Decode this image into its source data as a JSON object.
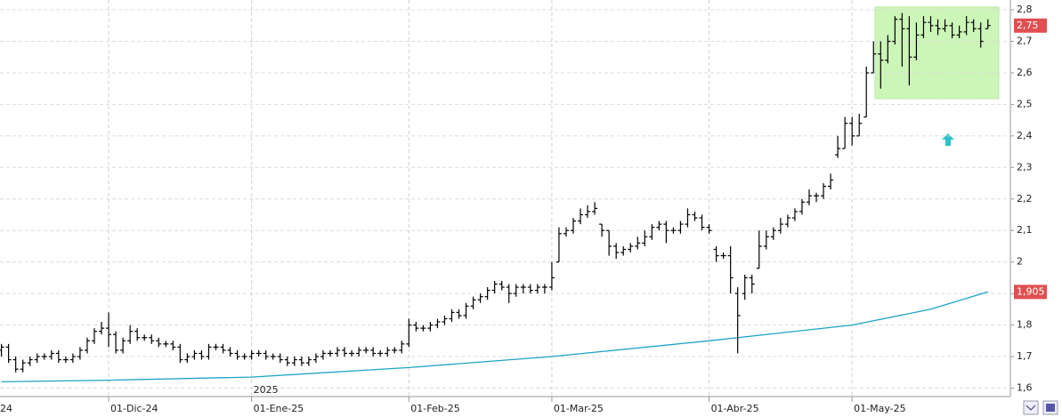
{
  "chart_data": {
    "type": "ohlc",
    "categories": [
      null,
      null,
      null,
      null,
      null,
      null,
      null,
      null,
      null,
      null,
      null,
      null,
      null,
      null,
      null,
      "01-Dic-24",
      null,
      null,
      null,
      null,
      null,
      null,
      null,
      null,
      null,
      null,
      null,
      null,
      null,
      null,
      null,
      null,
      null,
      null,
      null,
      "01-Ene-25",
      null,
      null,
      null,
      null,
      null,
      null,
      null,
      null,
      null,
      null,
      null,
      null,
      null,
      null,
      null,
      null,
      null,
      null,
      null,
      null,
      null,
      "01-Feb-25",
      null,
      null,
      null,
      null,
      null,
      null,
      null,
      null,
      null,
      null,
      null,
      null,
      null,
      null,
      null,
      null,
      null,
      null,
      null,
      "01-Mar-25",
      null,
      null,
      null,
      null,
      null,
      null,
      null,
      null,
      null,
      null,
      null,
      null,
      null,
      null,
      null,
      null,
      null,
      null,
      null,
      null,
      null,
      "01-Abr-25",
      null,
      null,
      null,
      null,
      null,
      null,
      null,
      null,
      null,
      null,
      null,
      null,
      null,
      null,
      null,
      null,
      null,
      null,
      null,
      "01-May-25",
      null,
      null,
      null,
      null,
      null,
      null,
      null,
      null,
      null,
      null,
      null,
      null,
      null,
      null,
      null,
      null,
      null,
      null,
      null
    ],
    "lead_label": "24",
    "year_label": "2025",
    "open": [
      1.72,
      1.73,
      1.69,
      1.66,
      1.68,
      1.69,
      1.7,
      1.7,
      1.71,
      1.69,
      1.69,
      1.7,
      1.72,
      1.75,
      1.78,
      1.79,
      1.77,
      1.72,
      1.75,
      1.78,
      1.76,
      1.76,
      1.75,
      1.74,
      1.74,
      1.73,
      1.69,
      1.7,
      1.71,
      1.7,
      1.73,
      1.73,
      1.72,
      1.71,
      1.7,
      1.7,
      1.71,
      1.71,
      1.7,
      1.7,
      1.69,
      1.68,
      1.69,
      1.68,
      1.69,
      1.7,
      1.71,
      1.71,
      1.72,
      1.71,
      1.71,
      1.72,
      1.72,
      1.71,
      1.71,
      1.72,
      1.72,
      1.74,
      1.8,
      1.79,
      1.79,
      1.8,
      1.81,
      1.82,
      1.84,
      1.83,
      1.86,
      1.88,
      1.89,
      1.91,
      1.93,
      1.92,
      1.9,
      1.92,
      1.92,
      1.91,
      1.92,
      1.92,
      2.0,
      2.09,
      2.1,
      2.13,
      2.15,
      2.16,
      2.12,
      2.1,
      2.05,
      2.03,
      2.04,
      2.05,
      2.06,
      2.08,
      2.11,
      2.12,
      2.1,
      2.1,
      2.12,
      2.15,
      2.14,
      2.11,
      2.04,
      2.02,
      2.02,
      1.9,
      1.9,
      1.95,
      1.98,
      2.05,
      2.08,
      2.1,
      2.12,
      2.14,
      2.16,
      2.19,
      2.21,
      2.21,
      2.24,
      2.34,
      2.36,
      2.44,
      2.4,
      2.46,
      2.6,
      2.66,
      2.64,
      2.7,
      2.77,
      2.74,
      2.65,
      2.72,
      2.76,
      2.75,
      2.74,
      2.75,
      2.72,
      2.73,
      2.76,
      2.74,
      2.74
    ],
    "high": [
      1.74,
      1.74,
      1.7,
      1.69,
      1.7,
      1.71,
      1.71,
      1.72,
      1.72,
      1.7,
      1.71,
      1.73,
      1.76,
      1.79,
      1.81,
      1.84,
      1.78,
      1.76,
      1.8,
      1.79,
      1.77,
      1.77,
      1.76,
      1.75,
      1.75,
      1.74,
      1.71,
      1.72,
      1.72,
      1.74,
      1.74,
      1.74,
      1.73,
      1.72,
      1.71,
      1.72,
      1.72,
      1.72,
      1.71,
      1.71,
      1.7,
      1.7,
      1.7,
      1.7,
      1.71,
      1.72,
      1.72,
      1.73,
      1.73,
      1.72,
      1.73,
      1.73,
      1.73,
      1.72,
      1.73,
      1.73,
      1.75,
      1.82,
      1.81,
      1.8,
      1.81,
      1.82,
      1.83,
      1.85,
      1.85,
      1.87,
      1.89,
      1.9,
      1.92,
      1.94,
      1.94,
      1.93,
      1.93,
      1.93,
      1.93,
      1.93,
      1.93,
      2.0,
      2.11,
      2.11,
      2.14,
      2.17,
      2.18,
      2.19,
      2.12,
      2.1,
      2.06,
      2.05,
      2.06,
      2.08,
      2.1,
      2.12,
      2.13,
      2.13,
      2.11,
      2.13,
      2.17,
      2.16,
      2.15,
      2.12,
      2.05,
      2.03,
      2.05,
      1.92,
      1.96,
      1.96,
      2.1,
      2.1,
      2.11,
      2.14,
      2.15,
      2.17,
      2.2,
      2.23,
      2.22,
      2.25,
      2.28,
      2.4,
      2.46,
      2.46,
      2.47,
      2.62,
      2.7,
      2.7,
      2.72,
      2.78,
      2.79,
      2.78,
      2.76,
      2.78,
      2.78,
      2.77,
      2.77,
      2.76,
      2.75,
      2.78,
      2.77,
      2.76,
      2.77
    ],
    "low": [
      1.7,
      1.68,
      1.65,
      1.65,
      1.67,
      1.68,
      1.69,
      1.69,
      1.68,
      1.68,
      1.68,
      1.69,
      1.71,
      1.74,
      1.77,
      1.73,
      1.71,
      1.71,
      1.74,
      1.75,
      1.75,
      1.74,
      1.73,
      1.73,
      1.72,
      1.68,
      1.68,
      1.69,
      1.69,
      1.69,
      1.72,
      1.71,
      1.7,
      1.69,
      1.69,
      1.69,
      1.7,
      1.69,
      1.69,
      1.68,
      1.67,
      1.67,
      1.67,
      1.67,
      1.68,
      1.69,
      1.7,
      1.7,
      1.7,
      1.7,
      1.7,
      1.71,
      1.7,
      1.7,
      1.7,
      1.71,
      1.71,
      1.73,
      1.78,
      1.78,
      1.78,
      1.79,
      1.8,
      1.81,
      1.82,
      1.82,
      1.85,
      1.87,
      1.88,
      1.9,
      1.91,
      1.87,
      1.89,
      1.9,
      1.9,
      1.9,
      1.9,
      1.91,
      2.0,
      2.08,
      2.09,
      2.12,
      2.14,
      2.15,
      2.08,
      2.02,
      2.01,
      2.02,
      2.03,
      2.04,
      2.05,
      2.07,
      2.1,
      2.06,
      2.09,
      2.09,
      2.11,
      2.13,
      2.1,
      2.09,
      2.0,
      2.01,
      1.9,
      1.71,
      1.88,
      1.9,
      1.98,
      2.04,
      2.07,
      2.09,
      2.11,
      2.13,
      2.15,
      2.18,
      2.19,
      2.2,
      2.23,
      2.33,
      2.36,
      2.37,
      2.4,
      2.46,
      2.6,
      2.55,
      2.63,
      2.69,
      2.62,
      2.56,
      2.64,
      2.71,
      2.73,
      2.72,
      2.73,
      2.71,
      2.71,
      2.72,
      2.73,
      2.68,
      2.74
    ],
    "close": [
      1.73,
      1.69,
      1.66,
      1.68,
      1.69,
      1.7,
      1.7,
      1.71,
      1.69,
      1.69,
      1.7,
      1.72,
      1.75,
      1.78,
      1.79,
      1.77,
      1.72,
      1.75,
      1.78,
      1.76,
      1.76,
      1.75,
      1.74,
      1.74,
      1.73,
      1.69,
      1.7,
      1.71,
      1.7,
      1.73,
      1.73,
      1.72,
      1.71,
      1.7,
      1.7,
      1.71,
      1.71,
      1.7,
      1.7,
      1.69,
      1.68,
      1.69,
      1.68,
      1.69,
      1.7,
      1.71,
      1.71,
      1.72,
      1.71,
      1.71,
      1.72,
      1.72,
      1.71,
      1.71,
      1.72,
      1.72,
      1.74,
      1.8,
      1.79,
      1.79,
      1.8,
      1.81,
      1.82,
      1.84,
      1.83,
      1.86,
      1.88,
      1.89,
      1.91,
      1.93,
      1.92,
      1.9,
      1.92,
      1.92,
      1.91,
      1.92,
      1.92,
      1.95,
      2.09,
      2.1,
      2.13,
      2.15,
      2.16,
      2.17,
      2.1,
      2.05,
      2.03,
      2.04,
      2.05,
      2.06,
      2.08,
      2.11,
      2.12,
      2.1,
      2.1,
      2.12,
      2.15,
      2.14,
      2.11,
      2.1,
      2.02,
      2.02,
      1.95,
      1.83,
      1.95,
      1.93,
      2.05,
      2.08,
      2.1,
      2.12,
      2.14,
      2.16,
      2.19,
      2.21,
      2.21,
      2.24,
      2.26,
      2.36,
      2.44,
      2.4,
      2.44,
      2.6,
      2.66,
      2.64,
      2.7,
      2.77,
      2.74,
      2.65,
      2.72,
      2.76,
      2.75,
      2.74,
      2.75,
      2.72,
      2.73,
      2.76,
      2.74,
      2.7,
      2.75
    ],
    "bar_color": "#000000",
    "ma": {
      "x": [
        0,
        15,
        35,
        57,
        77,
        99,
        119,
        130,
        138
      ],
      "values": [
        1.62,
        1.625,
        1.635,
        1.665,
        1.7,
        1.75,
        1.8,
        1.85,
        1.905
      ],
      "color": "#1ca3c8"
    },
    "last_label": {
      "value": 2.75,
      "label": "2,75"
    },
    "ma_label": {
      "value": 1.905,
      "label": "1,905"
    },
    "tag_color": "#e05050",
    "ylim": [
      1.5731,
      2.8312
    ],
    "yticks": [
      {
        "value": 1.6,
        "label": "1,6"
      },
      {
        "value": 1.7,
        "label": "1,7"
      },
      {
        "value": 1.8,
        "label": "1,8"
      },
      {
        "value": 1.9,
        "label": "1,9"
      },
      2,
      {
        "value": 2.1,
        "label": "2,1"
      },
      {
        "value": 2.2,
        "label": "2,2"
      },
      {
        "value": 2.3,
        "label": "2,3"
      },
      {
        "value": 2.4,
        "label": "2,4"
      },
      {
        "value": 2.5,
        "label": "2,5"
      },
      {
        "value": 2.6,
        "label": "2,6"
      },
      {
        "value": 2.7,
        "label": "2,7"
      },
      {
        "value": 2.8,
        "label": "2,8"
      }
    ],
    "grid": true
  }
}
